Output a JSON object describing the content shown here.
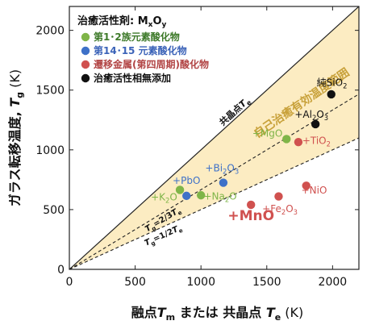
{
  "chart_data": {
    "type": "scatter",
    "xlim": [
      0,
      2200
    ],
    "ylim": [
      0,
      2200
    ],
    "x_ticks": [
      0,
      500,
      1000,
      1500,
      2000
    ],
    "y_ticks": [
      0,
      500,
      1000,
      1500,
      2000
    ],
    "x_tick_labels": [
      "0",
      "500",
      "1000",
      "1500",
      "2000"
    ],
    "y_tick_labels": [
      "0",
      "500",
      "1000",
      "1500",
      "2000"
    ],
    "xlabel": {
      "part1": "融点",
      "tm_sym": "T",
      "tm_sub": "m",
      "part2": "または 共晶点",
      "te_sym": "T",
      "te_sub": "e",
      "unit": "(K)"
    },
    "ylabel": {
      "part1": "ガラス転移温度,",
      "sym": "T",
      "sub": "g",
      "unit": "(K)"
    },
    "legend": {
      "position": "top-left",
      "title": "治癒活性剤: ",
      "title_formula": {
        "base1": "M",
        "sub1": "x",
        "base2": "O",
        "sub2": "y"
      },
      "entries": [
        {
          "label": "第1･2族元素酸化物",
          "color": "#7fb548",
          "text_color": "#3e7a2a"
        },
        {
          "label": "第14･15 元素酸化物",
          "color": "#3e71c8",
          "text_color": "#3b63b8"
        },
        {
          "label": "遷移金属(第四周期)酸化物",
          "color": "#d0514f",
          "text_color": "#b24545"
        },
        {
          "label": "治癒活性相無添加",
          "color": "#111111",
          "text_color": "#111111"
        }
      ]
    },
    "lines": [
      {
        "id": "te",
        "slope": 1.0,
        "style": "solid",
        "label_pre": "共晶点",
        "label_sym": "T",
        "label_sub": "e"
      },
      {
        "id": "two_thirds",
        "slope": 0.6667,
        "style": "dashed",
        "label_sym": "T",
        "label_sub": "g",
        "label_eq": "=2/3",
        "label_sym2": "T",
        "label_sub2": "e"
      },
      {
        "id": "half",
        "slope": 0.5,
        "style": "dashed",
        "label_sym": "T",
        "label_sub": "g",
        "label_eq": "=1/2",
        "label_sym2": "T",
        "label_sub2": "e"
      }
    ],
    "region_label": "自己治癒有効温度範囲",
    "region_color": "#fcecc2",
    "region_label_color": "#c8a13a",
    "series": [
      {
        "name": "第1･2族元素酸化物",
        "color": "#7fb548",
        "points": [
          {
            "label": "+K",
            "sub": "2",
            "tail": "O",
            "x": 840,
            "y": 665,
            "lx": 820,
            "ly": 578,
            "anchor": "end"
          },
          {
            "label": "+Na",
            "sub": "2",
            "tail": "O",
            "x": 1000,
            "y": 620,
            "lx": 1020,
            "ly": 585,
            "anchor": "start"
          },
          {
            "label": "+MgO",
            "sub": "",
            "tail": "",
            "x": 1650,
            "y": 1090,
            "lx": 1620,
            "ly": 1110,
            "anchor": "end"
          }
        ]
      },
      {
        "name": "第14･15 元素酸化物",
        "color": "#3e71c8",
        "points": [
          {
            "label": "+PbO",
            "sub": "",
            "tail": "",
            "x": 890,
            "y": 615,
            "lx": 890,
            "ly": 715,
            "anchor": "middle"
          },
          {
            "label": "+Bi",
            "sub": "2",
            "tail": "O3",
            "x": 1170,
            "y": 725,
            "lx": 1160,
            "ly": 820,
            "anchor": "middle"
          }
        ]
      },
      {
        "name": "遷移金属(第四周期)酸化物",
        "color": "#d0514f",
        "points": [
          {
            "label": "+MnO",
            "sub": "",
            "tail": "",
            "x": 1380,
            "y": 540,
            "lx": 1380,
            "ly": 410,
            "anchor": "middle",
            "big": true
          },
          {
            "label": "+Fe",
            "sub": "2",
            "tail": "O3",
            "x": 1590,
            "y": 610,
            "lx": 1600,
            "ly": 480,
            "anchor": "middle"
          },
          {
            "label": "+TiO",
            "sub": "2",
            "tail": "",
            "x": 1740,
            "y": 1065,
            "lx": 1770,
            "ly": 1050,
            "anchor": "start"
          },
          {
            "label": "+NiO",
            "sub": "",
            "tail": "",
            "x": 1800,
            "y": 700,
            "lx": 1860,
            "ly": 635,
            "anchor": "middle"
          }
        ]
      },
      {
        "name": "治癒活性相無添加",
        "color": "#111111",
        "points": [
          {
            "label": "+Al",
            "sub": "2",
            "tail": "O3",
            "x": 1870,
            "y": 1215,
            "lx": 1840,
            "ly": 1270,
            "anchor": "middle"
          },
          {
            "label": "純SiO",
            "sub": "2",
            "tail": "",
            "x": 1990,
            "y": 1465,
            "lx": 1995,
            "ly": 1535,
            "anchor": "middle"
          }
        ]
      }
    ]
  }
}
